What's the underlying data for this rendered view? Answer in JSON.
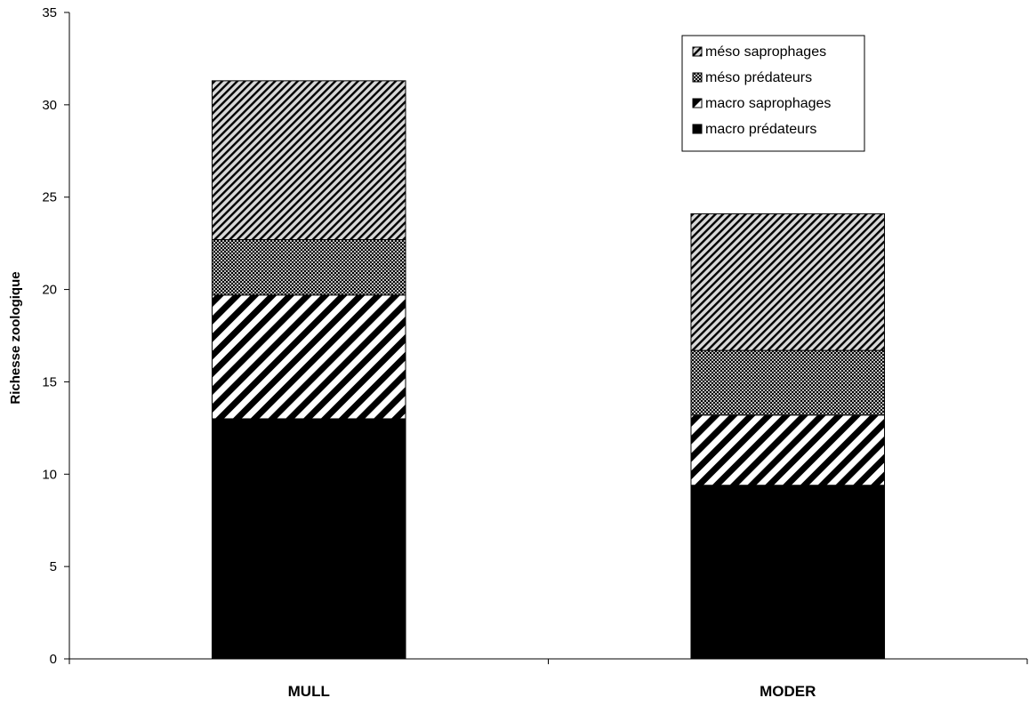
{
  "chart_data": {
    "type": "bar",
    "stacked": true,
    "categories": [
      "MULL",
      "MODER"
    ],
    "series": [
      {
        "name": "macro prédateurs",
        "values": [
          13.0,
          9.4
        ],
        "pattern": "solid"
      },
      {
        "name": "macro saprophages",
        "values": [
          6.7,
          3.8
        ],
        "pattern": "wide-diagonal"
      },
      {
        "name": "méso prédateurs",
        "values": [
          3.0,
          3.5
        ],
        "pattern": "dense-checker"
      },
      {
        "name": "méso saprophages",
        "values": [
          8.6,
          7.4
        ],
        "pattern": "light-diagonal"
      }
    ],
    "title": "",
    "xlabel": "",
    "ylabel": "Richesse zoologique",
    "ylim": [
      0,
      35
    ],
    "yticks": [
      0,
      5,
      10,
      15,
      20,
      25,
      30,
      35
    ],
    "grid": false,
    "legend": {
      "placement": "top-right",
      "order": [
        "méso saprophages",
        "méso prédateurs",
        "macro saprophages",
        "macro prédateurs"
      ]
    }
  }
}
